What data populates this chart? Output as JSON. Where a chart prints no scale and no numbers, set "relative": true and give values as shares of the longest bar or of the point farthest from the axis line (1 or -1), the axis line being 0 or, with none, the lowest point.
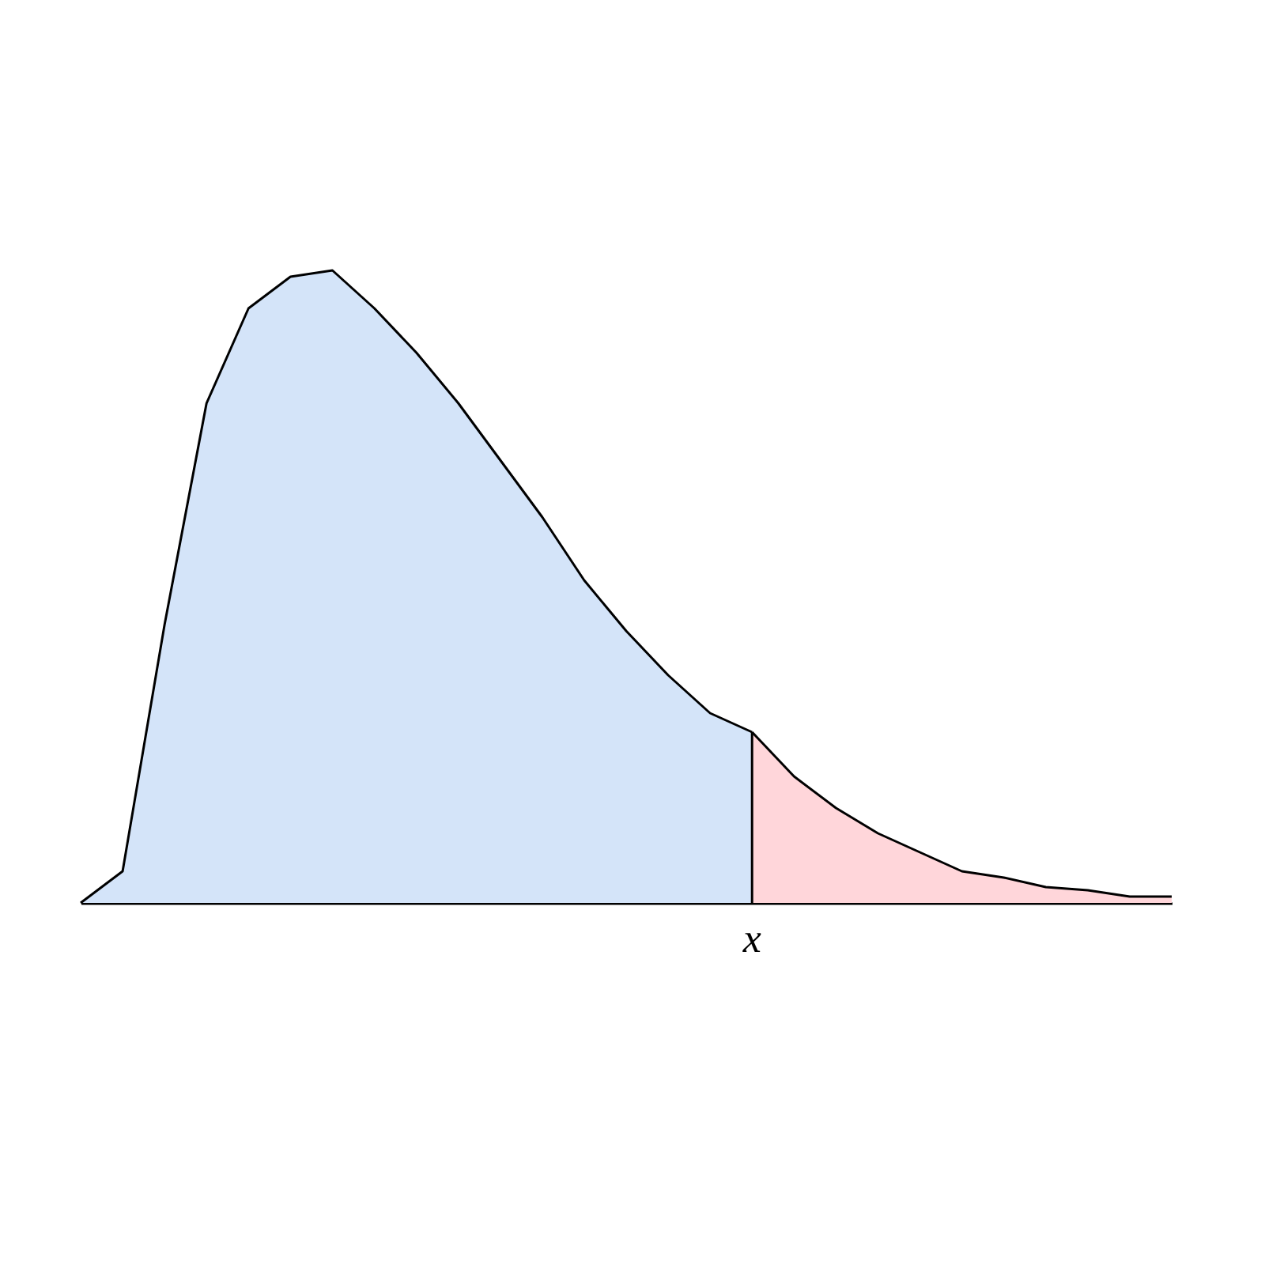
{
  "chart_data": {
    "type": "area",
    "relative": true,
    "categories": [
      null,
      null,
      null,
      null,
      null,
      null,
      null,
      null,
      null,
      null,
      null,
      null,
      null,
      null,
      null,
      null,
      null,
      null,
      null,
      null,
      null,
      null,
      null,
      null,
      null,
      null,
      null
    ],
    "series": [
      {
        "color": "#d4e4f9",
        "values": [
          0,
          0.05,
          0.44,
          0.79,
          0.94,
          0.99,
          1,
          0.94,
          0.87,
          0.79,
          0.7,
          0.61,
          0.51,
          0.43,
          0.36,
          0.3,
          0.27,
          null,
          null,
          null,
          null,
          null,
          null,
          null,
          null,
          null,
          null
        ]
      },
      {
        "color": "#ffd6da",
        "values": [
          null,
          null,
          null,
          null,
          null,
          null,
          null,
          null,
          null,
          null,
          null,
          null,
          null,
          null,
          null,
          null,
          0.27,
          0.2,
          0.15,
          0.11,
          0.08,
          0.05,
          0.04,
          0.025,
          0.02,
          0.01,
          0.01
        ]
      }
    ],
    "annotations": [
      "x"
    ],
    "grid": false,
    "legend": false
  }
}
